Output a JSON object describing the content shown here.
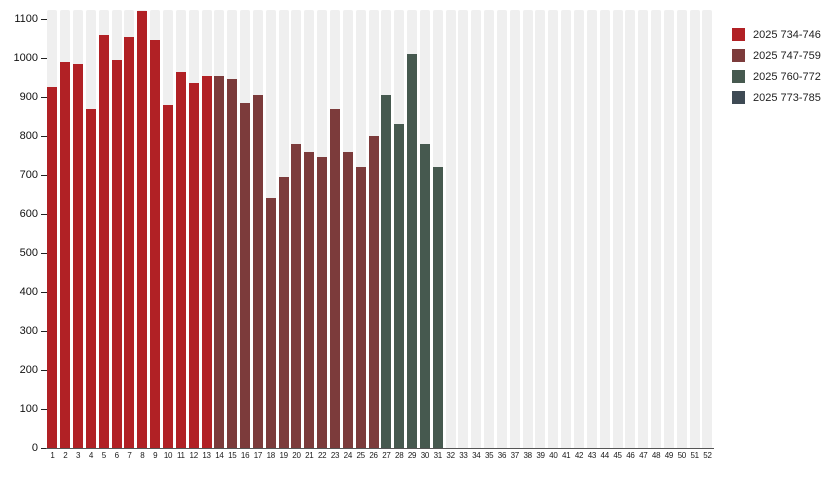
{
  "chart_data": {
    "type": "bar",
    "title": "",
    "xlabel": "",
    "ylabel": "",
    "x_labels": [
      "1",
      "2",
      "3",
      "4",
      "5",
      "6",
      "7",
      "8",
      "9",
      "10",
      "11",
      "12",
      "13",
      "14",
      "15",
      "16",
      "17",
      "18",
      "19",
      "20",
      "21",
      "22",
      "23",
      "24",
      "25",
      "26",
      "27",
      "28",
      "29",
      "30",
      "31",
      "32",
      "33",
      "34",
      "35",
      "36",
      "37",
      "38",
      "39",
      "40",
      "41",
      "42",
      "43",
      "44",
      "45",
      "46",
      "47",
      "48",
      "49",
      "50",
      "51",
      "52"
    ],
    "weeks_total": 52,
    "ylim": [
      0,
      1123
    ],
    "yticks": [
      0,
      100,
      200,
      300,
      400,
      500,
      600,
      700,
      800,
      900,
      1000,
      1100
    ],
    "grid": "striped-column-background",
    "legend_position": "top-right",
    "series": [
      {
        "name": "2025 734-746",
        "color": "#b12125",
        "week_start": 1,
        "values": [
          925,
          990,
          985,
          870,
          1060,
          995,
          1055,
          1120,
          1045,
          880,
          965,
          935,
          955
        ]
      },
      {
        "name": "2025 747-759",
        "color": "#7c3b3b",
        "week_start": 14,
        "values": [
          955,
          945,
          885,
          905,
          640,
          695,
          780,
          760,
          745,
          870,
          760,
          720,
          800
        ]
      },
      {
        "name": "2025 760-772",
        "color": "#46594f",
        "week_start": 27,
        "values": [
          905,
          830,
          1010,
          780,
          720
        ]
      },
      {
        "name": "2025 773-785",
        "color": "#3e4a54",
        "week_start": 40,
        "values": []
      }
    ]
  },
  "colors": {
    "background": "#ffffff",
    "stripe": "#efefef",
    "axis_line": "#555555",
    "tick_mark": "#222222",
    "tick_label": "#111111"
  }
}
